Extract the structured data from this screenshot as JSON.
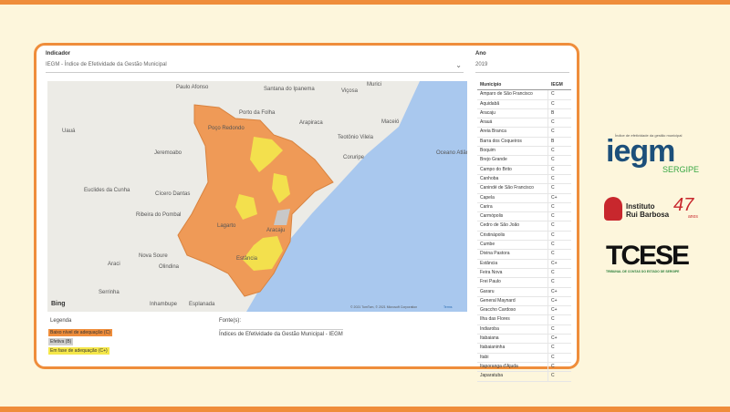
{
  "filters": {
    "indicator_label": "Indicador",
    "indicator_value": "IEGM - Índice de Efetividade da Gestão Municipal",
    "year_label": "Ano",
    "year_value": "2019"
  },
  "map": {
    "places": [
      "Paulo Afonso",
      "Santana do Ipanema",
      "Viçosa",
      "Murici",
      "Arapiraca",
      "Maceió",
      "Teotônio Vilela",
      "Uauá",
      "Jeremoabo",
      "Coruripe",
      "Oceano Atlântico",
      "Euclides da Cunha",
      "Cícero Dantas",
      "Ribeira do Pombal",
      "Lagarto",
      "Aracaju",
      "Estância",
      "Nova Soure",
      "Olindina",
      "Araci",
      "Serrinha",
      "Inhambupe",
      "Esplanada",
      "Porto da Folha",
      "Poço Redondo"
    ],
    "attribution": "Bing",
    "copyright": "© 2021 TomTom, © 2021 Microsoft Corporation",
    "terms": "Terms"
  },
  "legend": {
    "title": "Legenda",
    "items": [
      "Baixo nível de adequação (C)",
      "Efetiva (B)",
      "Em fase de adequação (C+)"
    ]
  },
  "source": {
    "title": "Fonte(s):",
    "text": "Índices de Efetividade da Gestão Municipal - IEGM"
  },
  "table": {
    "header": [
      "Município",
      "IEGM"
    ],
    "rows": [
      [
        "Amparo de São Francisco",
        "C"
      ],
      [
        "Aquidabã",
        "C"
      ],
      [
        "Aracaju",
        "B"
      ],
      [
        "Arauá",
        "C"
      ],
      [
        "Areia Branca",
        "C"
      ],
      [
        "Barra dos Coqueiros",
        "B"
      ],
      [
        "Boquim",
        "C"
      ],
      [
        "Brejo Grande",
        "C"
      ],
      [
        "Campo do Brito",
        "C"
      ],
      [
        "Canhoba",
        "C"
      ],
      [
        "Canindé de São Francisco",
        "C"
      ],
      [
        "Capela",
        "C+"
      ],
      [
        "Carira",
        "C"
      ],
      [
        "Carmópolis",
        "C"
      ],
      [
        "Cedro de São João",
        "C"
      ],
      [
        "Cristinápolis",
        "C"
      ],
      [
        "Cumbe",
        "C"
      ],
      [
        "Divina Pastora",
        "C"
      ],
      [
        "Estância",
        "C+"
      ],
      [
        "Feira Nova",
        "C"
      ],
      [
        "Frei Paulo",
        "C"
      ],
      [
        "Gararu",
        "C+"
      ],
      [
        "General Maynard",
        "C+"
      ],
      [
        "Graccho Cardoso",
        "C+"
      ],
      [
        "Ilha das Flores",
        "C"
      ],
      [
        "Indiaroba",
        "C"
      ],
      [
        "Itabaiana",
        "C+"
      ],
      [
        "Itabaianinha",
        "C"
      ],
      [
        "Itabi",
        "C"
      ],
      [
        "Itaporanga d'Ajuda",
        "C"
      ],
      [
        "Japaratuba",
        "C"
      ]
    ]
  },
  "logos": {
    "iegm_caption": "Índice de efetividade da gestão municipal",
    "iegm": "iegm",
    "iegm_state": "SERGIPE",
    "irb_line1": "Instituto",
    "irb_line2": "Rui Barbosa",
    "irb_years": "47",
    "irb_anos": "anos",
    "tce": "TCESE",
    "tce_caption": "TRIBUNAL DE CONTAS DO ESTADO DE SERGIPE"
  }
}
